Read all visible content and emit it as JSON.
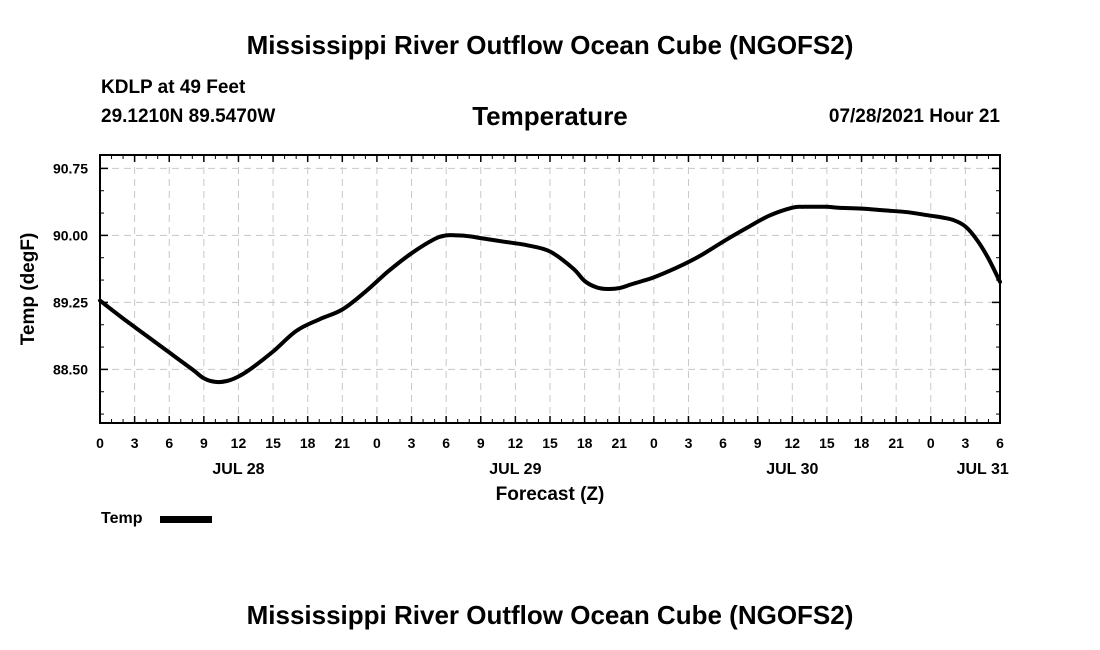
{
  "header": {
    "title": "Mississippi River Outflow Ocean Cube (NGOFS2)",
    "station": "KDLP at 49 Feet",
    "coords": "29.1210N  89.5470W",
    "variable": "Temperature",
    "datetime": "07/28/2021 Hour 21"
  },
  "footer": {
    "title": "Mississippi River Outflow Ocean Cube (NGOFS2)"
  },
  "legend": {
    "label": "Temp",
    "color": "#000000"
  },
  "chart_data": {
    "type": "line",
    "title": "Temperature",
    "xlabel": "Forecast (Z)",
    "ylabel": "Temp (degF)",
    "x_unit": "hours from 07/28 00Z",
    "xlim": [
      0,
      78
    ],
    "ylim": [
      87.9,
      90.9
    ],
    "grid": true,
    "legend_position": "bottom-left",
    "x_ticks": [
      0,
      3,
      6,
      9,
      12,
      15,
      18,
      21,
      24,
      27,
      30,
      33,
      36,
      39,
      42,
      45,
      48,
      51,
      54,
      57,
      60,
      63,
      66,
      69,
      72,
      75,
      78
    ],
    "x_tick_labels": [
      "0",
      "3",
      "6",
      "9",
      "12",
      "15",
      "18",
      "21",
      "0",
      "3",
      "6",
      "9",
      "12",
      "15",
      "18",
      "21",
      "0",
      "3",
      "6",
      "9",
      "12",
      "15",
      "18",
      "21",
      "0",
      "3",
      "6"
    ],
    "date_labels": [
      {
        "hour": 12,
        "label": "JUL 28"
      },
      {
        "hour": 36,
        "label": "JUL 29"
      },
      {
        "hour": 60,
        "label": "JUL 30"
      },
      {
        "hour": 76.5,
        "label": "JUL 31"
      }
    ],
    "y_ticks": [
      88.5,
      89.25,
      90.0,
      90.75
    ],
    "y_tick_labels": [
      "88.50",
      "89.25",
      "90.00",
      "90.75"
    ],
    "series": [
      {
        "name": "Temp",
        "color": "#000000",
        "x": [
          0,
          2,
          4,
          6,
          8,
          9,
          10,
          11,
          12,
          13,
          15,
          17,
          19,
          21,
          23,
          25,
          27,
          29,
          30,
          31,
          32,
          33,
          35,
          37,
          39,
          41,
          42,
          43,
          44,
          45,
          46,
          47,
          48,
          50,
          52,
          54,
          56,
          58,
          60,
          61,
          62,
          63,
          64,
          66,
          68,
          70,
          72,
          73,
          74,
          75,
          76,
          77,
          78
        ],
        "y": [
          89.27,
          89.07,
          88.88,
          88.69,
          88.5,
          88.4,
          88.36,
          88.37,
          88.42,
          88.5,
          88.7,
          88.93,
          89.06,
          89.17,
          89.37,
          89.6,
          89.8,
          89.96,
          90.0,
          90.0,
          89.99,
          89.97,
          89.93,
          89.89,
          89.82,
          89.63,
          89.49,
          89.42,
          89.4,
          89.41,
          89.45,
          89.49,
          89.53,
          89.64,
          89.77,
          89.93,
          90.08,
          90.22,
          90.31,
          90.32,
          90.32,
          90.32,
          90.31,
          90.3,
          90.28,
          90.26,
          90.22,
          90.2,
          90.17,
          90.1,
          89.95,
          89.74,
          89.48
        ]
      }
    ]
  }
}
